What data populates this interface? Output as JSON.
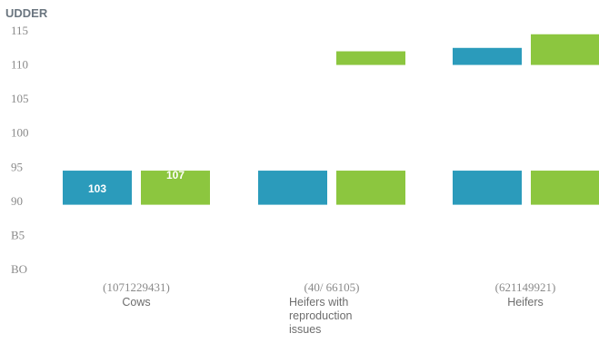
{
  "chart_data": {
    "type": "bar",
    "title": "UDDER",
    "y_tick_labels": [
      "BO",
      "B5",
      "90",
      "95",
      "100",
      "105",
      "110",
      "115"
    ],
    "ylim": [
      80,
      115
    ],
    "grid": false,
    "legend": "none",
    "categories": [
      {
        "code": "(1071229431)",
        "name": [
          "Cows"
        ]
      },
      {
        "code": "(40/  66105)",
        "name": [
          "Heifers with",
          "reproduction",
          "issues"
        ]
      },
      {
        "code": "(621149921)",
        "name": [
          "Heifers"
        ]
      }
    ],
    "series": [
      {
        "color": "#2b9bbb",
        "segments": [
          [
            [
              89.5,
              94.5
            ]
          ],
          [
            [
              89.5,
              94.5
            ]
          ],
          [
            [
              89.5,
              94.5
            ],
            [
              110,
              112.5
            ]
          ]
        ],
        "data_labels": [
          "103",
          "",
          ""
        ]
      },
      {
        "color": "#8cc63f",
        "segments": [
          [
            [
              89.5,
              94.5
            ]
          ],
          [
            [
              89.5,
              94.5
            ],
            [
              110,
              112
            ]
          ],
          [
            [
              89.5,
              94.5
            ],
            [
              110,
              114.5
            ]
          ]
        ],
        "data_labels": [
          "107",
          "",
          ""
        ]
      }
    ]
  }
}
